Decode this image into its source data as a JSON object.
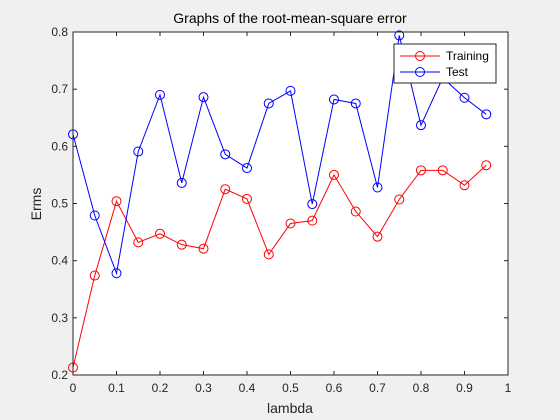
{
  "chart_data": {
    "type": "line",
    "title": "Graphs of the root-mean-square error",
    "xlabel": "lambda",
    "ylabel": "Erms",
    "xlim": [
      0,
      1
    ],
    "ylim": [
      0.2,
      0.8
    ],
    "xticks": [
      0,
      0.1,
      0.2,
      0.3,
      0.4,
      0.5,
      0.6,
      0.7,
      0.8,
      0.9,
      1
    ],
    "xtick_labels": [
      "0",
      "0.1",
      "0.2",
      "0.3",
      "0.4",
      "0.5",
      "0.6",
      "0.7",
      "0.8",
      "0.9",
      "1"
    ],
    "yticks": [
      0.2,
      0.3,
      0.4,
      0.5,
      0.6,
      0.7,
      0.8
    ],
    "ytick_labels": [
      "0.2",
      "0.3",
      "0.4",
      "0.5",
      "0.6",
      "0.7",
      "0.8"
    ],
    "grid": false,
    "legend_position": "top-right",
    "x": [
      0,
      0.05,
      0.1,
      0.15,
      0.2,
      0.25,
      0.3,
      0.35,
      0.4,
      0.45,
      0.5,
      0.55,
      0.6,
      0.65,
      0.7,
      0.75,
      0.8,
      0.85,
      0.9,
      0.95
    ],
    "series": [
      {
        "name": "Training",
        "color": "#ff0000",
        "marker": "circle",
        "values": [
          0.213,
          0.374,
          0.504,
          0.432,
          0.447,
          0.428,
          0.421,
          0.525,
          0.508,
          0.411,
          0.465,
          0.47,
          0.55,
          0.486,
          0.442,
          0.507,
          0.558,
          0.558,
          0.532,
          0.567
        ]
      },
      {
        "name": "Test",
        "color": "#0000ff",
        "marker": "circle",
        "values": [
          0.621,
          0.479,
          0.378,
          0.591,
          0.69,
          0.536,
          0.686,
          0.586,
          0.562,
          0.675,
          0.697,
          0.499,
          0.682,
          0.675,
          0.528,
          0.794,
          0.637,
          0.72,
          0.685,
          0.656
        ]
      }
    ]
  }
}
